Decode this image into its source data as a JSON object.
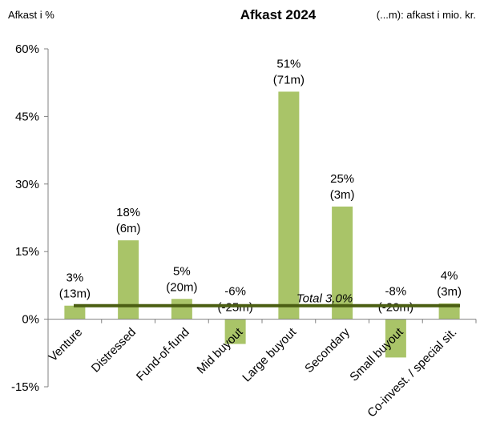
{
  "chart_data": {
    "type": "bar",
    "title": "Afkast 2024",
    "ylabel": "Afkast i %",
    "note": "(...m): afkast i mio. kr.",
    "ylim": [
      -15,
      60
    ],
    "yticks": [
      -15,
      0,
      15,
      30,
      45,
      60
    ],
    "ytick_labels": [
      "-15%",
      "0%",
      "15%",
      "30%",
      "45%",
      "60%"
    ],
    "categories": [
      "Venture",
      "Distressed",
      "Fund-of-fund",
      "Mid buyout",
      "Large buyout",
      "Secondary",
      "Small buyout",
      "Co-invest. / special sit."
    ],
    "values": [
      3,
      17.5,
      4.5,
      -5.5,
      50.5,
      25,
      -8.5,
      3.5
    ],
    "label_pct": [
      "3%",
      "18%",
      "5%",
      "-6%",
      "51%",
      "25%",
      "-8%",
      "4%"
    ],
    "label_amount": [
      "(13m)",
      "(6m)",
      "(20m)",
      "(-25m)",
      "(71m)",
      "(3m)",
      "(-20m)",
      "(3m)"
    ],
    "total": {
      "label": "Total 3,0%",
      "value": 3.0
    },
    "grid": false,
    "colors": {
      "bar": "#a9c468",
      "total_line": "#4b5e12",
      "axis": "#808080"
    }
  }
}
